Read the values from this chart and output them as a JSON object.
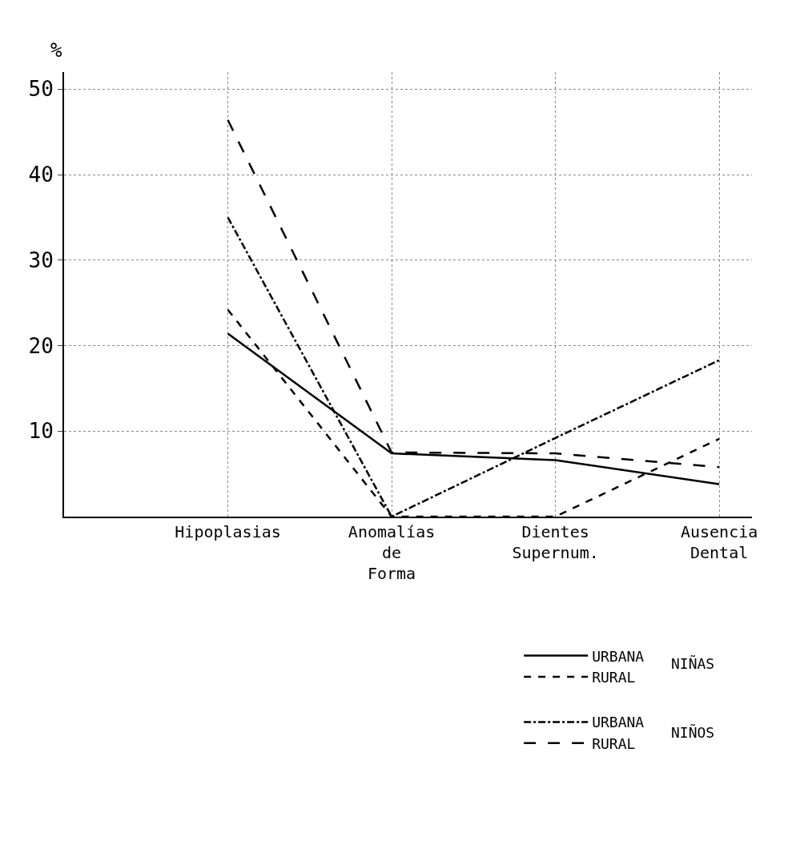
{
  "chart_data": {
    "type": "line",
    "ylabel": "%",
    "annotations": [
      "NIÑAS",
      "NIÑOS"
    ],
    "categories": [
      "Hipoplasias",
      "Anomalías\nde\nForma",
      "Dientes\nSupernum.",
      "Ausencia\nDental"
    ],
    "series": [
      {
        "name": "URBANA",
        "color": "#000000",
        "line_style": "solid",
        "values": [
          21.4,
          7.4,
          6.6,
          3.8
        ]
      },
      {
        "name": "RURAL",
        "color": "#000000",
        "line_style": "dotted",
        "values": [
          24.2,
          0,
          0,
          9.1
        ]
      },
      {
        "name": "URBANA",
        "color": "#000000",
        "line_style": "dashdot",
        "values": [
          35,
          0,
          9.2,
          18.3
        ]
      },
      {
        "name": "RURAL",
        "color": "#000000",
        "line_style": "dashed",
        "values": [
          46.4,
          7.5,
          7.4,
          5.8
        ]
      }
    ],
    "ylim": [
      0,
      52
    ],
    "yticks": [
      10,
      20,
      30,
      40,
      50
    ],
    "grid": true,
    "legend": "bottom right",
    "marker": "none"
  }
}
